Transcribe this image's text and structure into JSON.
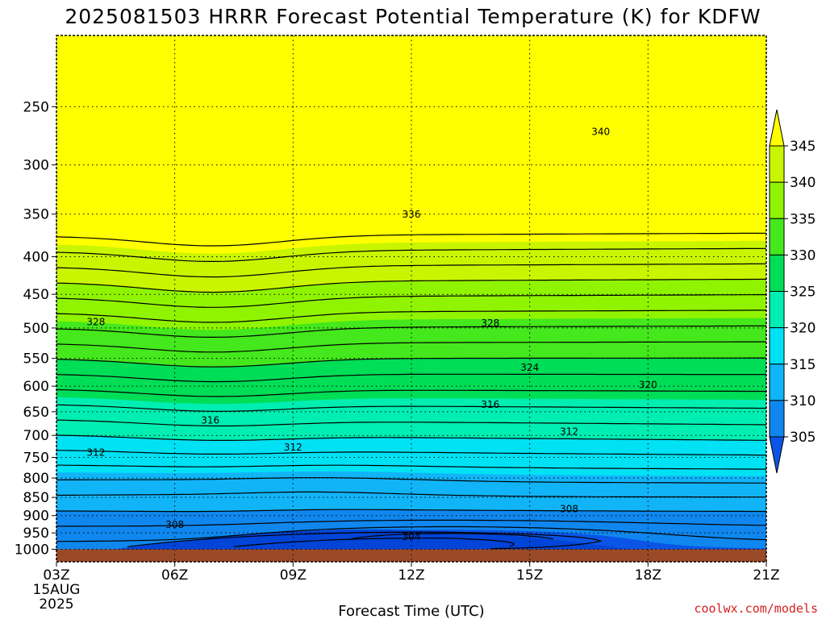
{
  "chart_data": {
    "type": "heatmap",
    "title": "2025081503 HRRR Forecast Potential Temperature (K) for KDFW",
    "xlabel": "Forecast Time (UTC)",
    "ylabel": "",
    "x_ticks": [
      "03Z",
      "06Z",
      "09Z",
      "12Z",
      "15Z",
      "18Z",
      "21Z"
    ],
    "x_sub_labels": [
      "15AUG",
      "2025"
    ],
    "y_ticks": [
      250,
      300,
      350,
      400,
      450,
      500,
      550,
      600,
      650,
      700,
      750,
      800,
      850,
      900,
      950,
      1000
    ],
    "y_scale": "log-pressure",
    "y_range": [
      200,
      1040
    ],
    "x_range_hours": [
      3,
      21
    ],
    "surface_pressure": 1000,
    "colorbar": {
      "levels": [
        305,
        310,
        315,
        320,
        325,
        330,
        335,
        340,
        345
      ],
      "colors": [
        "#0a55e6",
        "#0f87ee",
        "#12b4f8",
        "#00e2f4",
        "#00eeb2",
        "#00dd56",
        "#44e81c",
        "#90f400",
        "#caf500",
        "#ffff00"
      ]
    },
    "contour_labels": [
      {
        "value": 340,
        "x": 16.8,
        "p": 270
      },
      {
        "value": 336,
        "x": 12.0,
        "p": 350
      },
      {
        "value": 328,
        "x": 4.0,
        "p": 490
      },
      {
        "value": 328,
        "x": 14.0,
        "p": 492
      },
      {
        "value": 324,
        "x": 15.0,
        "p": 565
      },
      {
        "value": 320,
        "x": 18.0,
        "p": 597
      },
      {
        "value": 316,
        "x": 6.9,
        "p": 667
      },
      {
        "value": 316,
        "x": 14.0,
        "p": 635
      },
      {
        "value": 312,
        "x": 4.0,
        "p": 738
      },
      {
        "value": 312,
        "x": 9.0,
        "p": 726
      },
      {
        "value": 312,
        "x": 16.0,
        "p": 691
      },
      {
        "value": 308,
        "x": 16.0,
        "p": 880
      },
      {
        "value": 308,
        "x": 6.0,
        "p": 925
      },
      {
        "value": 304,
        "x": 12.0,
        "p": 960
      }
    ],
    "grid": true,
    "credit": "coolwx.com/models"
  }
}
